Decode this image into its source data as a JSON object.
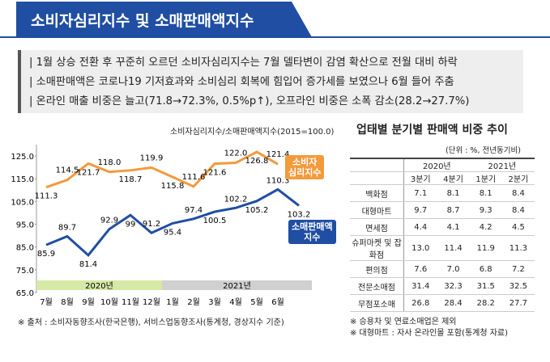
{
  "header": {
    "title": "소비자심리지수 및 소매판매액지수"
  },
  "bullets": [
    "1월 상승 전환 후 꾸준히 오르던 소비자심리지수는 7월 델타변이 감염 확산으로 전월 대비 하락",
    "소매판매액은 코로나19 기저효과와 소비심리 회복에 힘입어  증가세를 보였으나 6월 들어 주춤",
    "온라인 매출 비중은 늘고(71.8→72.3%, 0.5%p↑), 오프라인 비중은 소폭 감소(28.2→27.7%)"
  ],
  "chart_data": {
    "type": "line",
    "unit_label": "소비자심리지수/소매판매액지수(2015=100.0)",
    "categories": [
      "7월",
      "8월",
      "9월",
      "10월",
      "11월",
      "12월",
      "1월",
      "2월",
      "3월",
      "4월",
      "5월",
      "6월",
      null
    ],
    "year_groups": [
      "2020년",
      "2021년"
    ],
    "series": [
      {
        "name": "소비자\n심리지수",
        "color": "#f39a3b",
        "values": [
          111.3,
          114.5,
          121.7,
          118.0,
          118.7,
          119.9,
          115.8,
          111.6,
          121.6,
          122.0,
          126.8,
          121.4,
          null
        ],
        "value_labels": [
          "111.3",
          "114.5",
          "121.7",
          "118.0",
          "118.7",
          "119.9",
          "115.8",
          "111.6",
          "121.6",
          "122.0",
          "126.8",
          "121.4",
          null
        ]
      },
      {
        "name": "소매판매액\n지수",
        "color": "#1f4ea3",
        "values": [
          85.9,
          89.7,
          81.4,
          92.9,
          99,
          91.2,
          95.4,
          97.4,
          100.5,
          102.2,
          105.2,
          110.3,
          103.2
        ],
        "value_labels": [
          "85.9",
          "89.7",
          "81.4",
          "92.9",
          "99",
          "91.2",
          "95.4",
          "97.4",
          "100.5",
          "102.2",
          "105.2",
          "110.3",
          "103.2"
        ]
      }
    ],
    "ylim": [
      65,
      130
    ],
    "yticks": [
      {
        "value": 65,
        "label": "65.0"
      },
      {
        "value": 75,
        "label": "75.0"
      },
      {
        "value": 85,
        "label": "85.0"
      },
      {
        "value": 95,
        "label": "95.0"
      },
      {
        "value": 105,
        "label": "105.0"
      },
      {
        "value": 115,
        "label": "115.0"
      },
      {
        "value": 125,
        "label": "125.0"
      }
    ],
    "source": "※ 출처 : 소비자동향조사(한국은행), 서비스업동향조사(통계청, 경상지수 기준)"
  },
  "table": {
    "title": "업태별 분기별 판매액 비중 추이",
    "unit": "(단위 : %, 전년동기비)",
    "years": [
      "2020년",
      "2021년"
    ],
    "quarters": [
      "3분기",
      "4분기",
      "1분기",
      "2분기"
    ],
    "rows": [
      [
        "백화점",
        "7.1",
        "8.1",
        "8.1",
        "8.4"
      ],
      [
        "대형마트",
        "9.7",
        "8.7",
        "9.3",
        "8.4"
      ],
      [
        "면세점",
        "4.4",
        "4.1",
        "4.2",
        "4.5"
      ],
      [
        "슈퍼마켓 및 잡화점",
        "13.0",
        "11.4",
        "11.9",
        "11.3"
      ],
      [
        "편의점",
        "7.6",
        "7.0",
        "6.8",
        "7.2"
      ],
      [
        "전문소매점",
        "31.4",
        "32.3",
        "31.5",
        "32.5"
      ],
      [
        "무점포소매",
        "26.8",
        "28.4",
        "28.2",
        "27.7"
      ]
    ],
    "notes": [
      "※ 승용차 및 연료소매업은 제외",
      "※ 대형마트 : 자사 온라인몰 포함(통계청 자료)"
    ]
  }
}
